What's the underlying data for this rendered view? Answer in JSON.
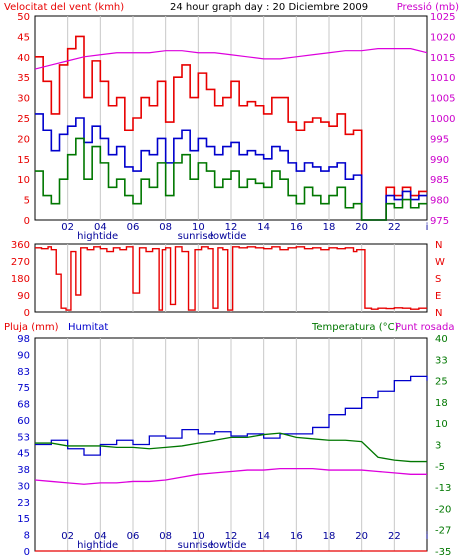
{
  "chart_data": [
    {
      "type": "line",
      "title": "24 hour graph day : 20 Diciembre 2009",
      "left_axis_label": "Velocitat del vent (kmh)",
      "right_axis_label": "Pressió (mb)",
      "left_ylim": [
        0,
        50
      ],
      "left_ticks": [
        "0",
        "5",
        "10",
        "15",
        "20",
        "25",
        "30",
        "35",
        "40",
        "45",
        "50"
      ],
      "right_ylim": [
        975,
        1025
      ],
      "right_ticks": [
        "975",
        "980",
        "985",
        "990",
        "995",
        "1000",
        "1005",
        "1010",
        "1015",
        "1020",
        "1025"
      ],
      "x_ticks": [
        "02",
        "04",
        "06",
        "08",
        "10",
        "12",
        "14",
        "16",
        "18",
        "20",
        "22"
      ],
      "x_sublabels": [
        {
          "after": "02",
          "text": "hightide"
        },
        {
          "after": "08",
          "text": "sunrise"
        },
        {
          "after": "10",
          "text": "lowtide"
        }
      ],
      "grid": true,
      "series": [
        {
          "color": "#e80000",
          "axis": "left",
          "x": [
            0,
            0.5,
            1,
            1.5,
            2,
            2.5,
            3,
            3.5,
            4,
            4.5,
            5,
            5.5,
            6,
            6.5,
            7,
            7.5,
            8,
            8.5,
            9,
            9.5,
            10,
            10.5,
            11,
            11.5,
            12,
            12.5,
            13,
            13.5,
            14,
            14.5,
            15,
            15.5,
            16,
            16.5,
            17,
            17.5,
            18,
            18.5,
            19,
            19.5,
            20,
            20.5,
            21,
            21.5,
            22,
            22.5,
            23,
            23.5,
            24
          ],
          "values": [
            40,
            34,
            26,
            38,
            42,
            45,
            30,
            39,
            34,
            28,
            30,
            22,
            25,
            30,
            28,
            34,
            24,
            35,
            38,
            30,
            36,
            32,
            28,
            30,
            34,
            28,
            29,
            28,
            26,
            30,
            30,
            24,
            22,
            24,
            25,
            24,
            23,
            26,
            21,
            22,
            0,
            0,
            0,
            8,
            6,
            8,
            6,
            7,
            7
          ]
        },
        {
          "color": "#0000cc",
          "axis": "left",
          "x": [
            0,
            0.5,
            1,
            1.5,
            2,
            2.5,
            3,
            3.5,
            4,
            4.5,
            5,
            5.5,
            6,
            6.5,
            7,
            7.5,
            8,
            8.5,
            9,
            9.5,
            10,
            10.5,
            11,
            11.5,
            12,
            12.5,
            13,
            13.5,
            14,
            14.5,
            15,
            15.5,
            16,
            16.5,
            17,
            17.5,
            18,
            18.5,
            19,
            19.5,
            20,
            20.5,
            21,
            21.5,
            22,
            22.5,
            23,
            23.5,
            24
          ],
          "values": [
            26,
            22,
            17,
            21,
            23,
            25,
            19,
            23,
            20,
            16,
            18,
            13,
            12,
            17,
            16,
            20,
            14,
            20,
            22,
            17,
            20,
            18,
            16,
            18,
            19,
            16,
            17,
            16,
            15,
            18,
            17,
            14,
            12,
            14,
            13,
            12,
            13,
            14,
            10,
            11,
            0,
            0,
            0,
            6,
            5,
            7,
            5,
            6,
            6
          ]
        },
        {
          "color": "#007700",
          "axis": "left",
          "x": [
            0,
            0.5,
            1,
            1.5,
            2,
            2.5,
            3,
            3.5,
            4,
            4.5,
            5,
            5.5,
            6,
            6.5,
            7,
            7.5,
            8,
            8.5,
            9,
            9.5,
            10,
            10.5,
            11,
            11.5,
            12,
            12.5,
            13,
            13.5,
            14,
            14.5,
            15,
            15.5,
            16,
            16.5,
            17,
            17.5,
            18,
            18.5,
            19,
            19.5,
            20,
            20.5,
            21,
            21.5,
            22,
            22.5,
            23,
            23.5,
            24
          ],
          "values": [
            12,
            6,
            4,
            10,
            16,
            20,
            10,
            18,
            14,
            8,
            10,
            6,
            4,
            10,
            8,
            14,
            6,
            14,
            16,
            10,
            14,
            12,
            8,
            10,
            12,
            8,
            10,
            9,
            8,
            12,
            10,
            6,
            4,
            8,
            6,
            4,
            6,
            8,
            3,
            4,
            0,
            0,
            0,
            4,
            3,
            5,
            3,
            4,
            4
          ]
        },
        {
          "color": "#dd00dd",
          "axis": "right",
          "x": [
            0,
            1,
            2,
            3,
            4,
            5,
            6,
            7,
            8,
            9,
            10,
            11,
            12,
            13,
            14,
            15,
            16,
            17,
            18,
            19,
            20,
            21,
            22,
            23,
            24
          ],
          "values": [
            1012,
            1013,
            1014,
            1015,
            1015.5,
            1016,
            1016,
            1016,
            1016.5,
            1016.5,
            1016,
            1016,
            1015.5,
            1015,
            1014.5,
            1014.5,
            1015,
            1015.5,
            1016,
            1016.5,
            1016.5,
            1017,
            1017,
            1017,
            1016
          ]
        }
      ]
    },
    {
      "type": "line",
      "ylim": [
        0,
        360
      ],
      "left_ticks": [
        "0",
        "90",
        "180",
        "270",
        "360"
      ],
      "right_ticks": [
        "N",
        "E",
        "S",
        "W",
        "N"
      ],
      "grid": true,
      "series": [
        {
          "color": "#e80000",
          "x": [
            0,
            0.4,
            0.8,
            1.0,
            1.3,
            1.6,
            1.9,
            2.2,
            2.5,
            2.8,
            3.2,
            3.6,
            4.0,
            4.4,
            4.8,
            5.2,
            5.6,
            6.0,
            6.4,
            6.8,
            7.2,
            7.6,
            7.8,
            8.0,
            8.3,
            8.6,
            9.0,
            9.4,
            9.8,
            10.2,
            10.6,
            10.9,
            11.2,
            11.5,
            11.8,
            12.1,
            12.5,
            13.0,
            13.5,
            14.0,
            14.5,
            15.0,
            15.5,
            16.0,
            16.5,
            17.0,
            17.5,
            18.0,
            18.5,
            19.0,
            19.5,
            19.7,
            20.2,
            20.6,
            21.0,
            21.5,
            22.0,
            22.5,
            23.0,
            23.5,
            24.0
          ],
          "values": [
            340,
            335,
            345,
            330,
            200,
            20,
            10,
            320,
            90,
            340,
            330,
            345,
            335,
            320,
            340,
            330,
            345,
            100,
            340,
            320,
            335,
            10,
            330,
            340,
            40,
            345,
            320,
            10,
            330,
            345,
            335,
            20,
            340,
            330,
            10,
            345,
            340,
            345,
            340,
            335,
            345,
            330,
            340,
            345,
            335,
            340,
            330,
            340,
            335,
            340,
            320,
            330,
            20,
            15,
            20,
            18,
            22,
            20,
            15,
            20,
            20
          ]
        }
      ]
    },
    {
      "type": "line",
      "left_axis_labels": [
        "Pluja (mm)",
        "Humitat"
      ],
      "right_axis_labels": [
        "Temperatura (°C)",
        "Punt rosada"
      ],
      "left_ticks": [
        "0",
        "8",
        "15",
        "23",
        "30",
        "38",
        "45",
        "53",
        "60",
        "68",
        "75",
        "83",
        "90",
        "98"
      ],
      "left_ticks_humidity": [
        "0",
        "10",
        "20",
        "30",
        "40",
        "50",
        "60",
        "70",
        "80",
        "90",
        "100"
      ],
      "right_ticks": [
        "-35",
        "-27",
        "-20",
        "-13",
        "-5",
        "3",
        "10",
        "18",
        "25",
        "33",
        "40"
      ],
      "right_ylim": [
        -35,
        40
      ],
      "x_ticks": [
        "02",
        "04",
        "06",
        "08",
        "10",
        "12",
        "14",
        "16",
        "18",
        "20",
        "22"
      ],
      "x_sublabels": [
        {
          "after": "02",
          "text": "hightide"
        },
        {
          "after": "08",
          "text": "sunrise"
        },
        {
          "after": "10",
          "text": "lowtide"
        }
      ],
      "grid": true,
      "series": [
        {
          "color": "#0000cc",
          "axis": "humidity",
          "x": [
            0,
            1,
            2,
            3,
            4,
            5,
            6,
            7,
            8,
            9,
            10,
            11,
            12,
            13,
            14,
            15,
            16,
            17,
            18,
            19,
            20,
            21,
            22,
            23,
            24
          ],
          "values": [
            50,
            52,
            48,
            45,
            50,
            52,
            50,
            54,
            53,
            57,
            55,
            56,
            54,
            55,
            53,
            55,
            55,
            58,
            64,
            67,
            72,
            75,
            80,
            82,
            80
          ]
        },
        {
          "color": "#007700",
          "axis": "right",
          "x": [
            0,
            1,
            2,
            3,
            4,
            5,
            6,
            7,
            8,
            9,
            10,
            11,
            12,
            13,
            14,
            15,
            16,
            17,
            18,
            19,
            20,
            21,
            22,
            23,
            24
          ],
          "values": [
            3,
            3,
            2,
            2,
            2,
            1.5,
            1.5,
            1,
            1.5,
            2,
            3,
            4,
            5,
            5,
            6,
            6.5,
            5,
            4.5,
            4,
            4,
            3.5,
            -2,
            -3,
            -3.5,
            -3.5
          ]
        },
        {
          "color": "#dd00dd",
          "axis": "right",
          "x": [
            0,
            1,
            2,
            3,
            4,
            5,
            6,
            7,
            8,
            9,
            10,
            11,
            12,
            13,
            14,
            15,
            16,
            17,
            18,
            19,
            20,
            21,
            22,
            23,
            24
          ],
          "values": [
            -10,
            -10.5,
            -11,
            -11.5,
            -11,
            -11,
            -10.5,
            -10.5,
            -10,
            -9,
            -8,
            -7.5,
            -7,
            -6.5,
            -6.5,
            -6,
            -6,
            -6,
            -6.5,
            -6.5,
            -6.5,
            -7,
            -7.5,
            -8,
            -8
          ]
        },
        {
          "color": "#e80000",
          "axis": "humidity",
          "x": [
            0,
            24
          ],
          "values": [
            0,
            0
          ]
        }
      ]
    }
  ]
}
